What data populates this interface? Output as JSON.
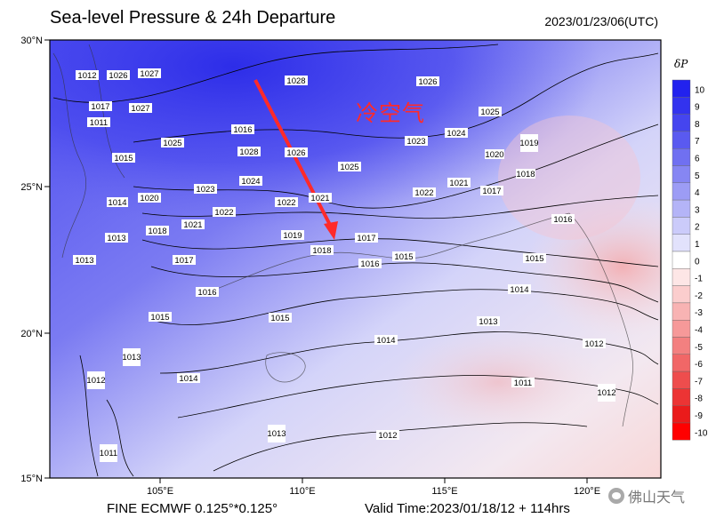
{
  "header": {
    "title": "Sea-level Pressure & 24h Departure",
    "datetime": "2023/01/23/06(UTC)"
  },
  "footer": {
    "model": "FINE ECMWF 0.125°*0.125°",
    "valid_time": "Valid Time:2023/01/18/12 + 114hrs",
    "brand": "佛山天气"
  },
  "map": {
    "annotation": "冷空气",
    "lat_labels": [
      "30°N",
      "25°N",
      "20°N",
      "15°N"
    ],
    "lon_labels": [
      "105°E",
      "110°E",
      "115°E",
      "120°E"
    ],
    "isobar_labels": [
      "1012",
      "1026",
      "1027",
      "1017",
      "1027",
      "1028",
      "1026",
      "1025",
      "1011",
      "1015",
      "1025",
      "1028",
      "1026",
      "1024",
      "1023",
      "1020",
      "1025",
      "1019",
      "1018",
      "1014",
      "1023",
      "1024",
      "1022",
      "1021",
      "1022",
      "1021",
      "1017",
      "1020",
      "1013",
      "1021",
      "1022",
      "1019",
      "1018",
      "1017",
      "1016",
      "1018",
      "1017",
      "1016",
      "1016",
      "1015",
      "1015",
      "1014",
      "1015",
      "1013",
      "1014",
      "1012",
      "1013",
      "1014",
      "1013",
      "1012",
      "1011",
      "1011",
      "1012",
      "1012",
      "1013",
      "1016",
      "1015"
    ],
    "arrow": "red-arrow"
  },
  "legend": {
    "label": "δP",
    "ticks": [
      "10",
      "9",
      "8",
      "7",
      "6",
      "5",
      "4",
      "3",
      "2",
      "1",
      "0",
      "-1",
      "-2",
      "-3",
      "-4",
      "-5",
      "-6",
      "-7",
      "-8",
      "-9",
      "-10"
    ],
    "colors": [
      "#2222ee",
      "#3333ee",
      "#4545ef",
      "#5a5af0",
      "#7070f1",
      "#8686f3",
      "#9c9cf5",
      "#b4b4f7",
      "#cbcbfa",
      "#e2e2fc",
      "#ffffff",
      "#fde6e6",
      "#fbcdcd",
      "#f8b3b3",
      "#f69999",
      "#f38080",
      "#f16767",
      "#ee4d4d",
      "#ec3434",
      "#ea1b1b",
      "#ff0000"
    ]
  }
}
